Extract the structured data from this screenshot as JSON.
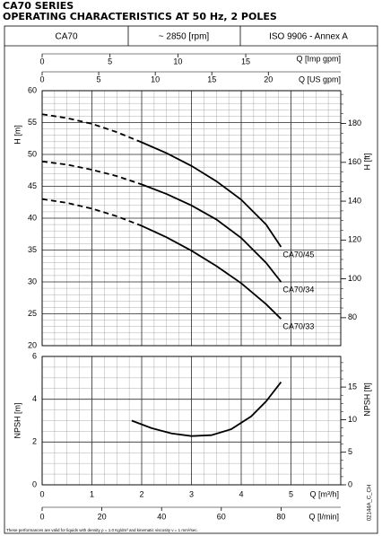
{
  "header": {
    "title": "CA70 SERIES",
    "subtitle": "OPERATING CHARACTERISTICS AT 50 Hz, 2 POLES",
    "cells": [
      "CA70",
      "~ 2850 [rpm]",
      "ISO 9906 - Annex A"
    ]
  },
  "chart_data": [
    {
      "type": "line",
      "ylabel": "H [m]",
      "ylim": [
        20,
        60
      ],
      "yticks": [
        20,
        25,
        30,
        35,
        40,
        45,
        50,
        55,
        60
      ],
      "y2label": "H [ft]",
      "y2lim": [
        65.6,
        196.9
      ],
      "y2ticks": [
        80,
        100,
        120,
        140,
        160,
        180
      ],
      "xlim": [
        0,
        6
      ],
      "grid": true,
      "top_axes": [
        {
          "label": "Q [Imp gpm]",
          "xlim": [
            0,
            22
          ],
          "xticks": [
            0,
            5,
            10,
            15
          ]
        },
        {
          "label": "Q [US gpm]",
          "xlim": [
            0,
            26.4
          ],
          "xticks": [
            0,
            5,
            10,
            15,
            20
          ]
        }
      ],
      "series": [
        {
          "style": "dashed",
          "color": "#000000",
          "x": [
            0,
            0.5,
            1,
            1.5,
            2
          ],
          "values": [
            56.3,
            55.7,
            54.8,
            53.5,
            51.9
          ]
        },
        {
          "name": "CA70/45",
          "style": "solid",
          "color": "#000000",
          "x": [
            2,
            2.5,
            3,
            3.5,
            4,
            4.5,
            4.8
          ],
          "values": [
            51.9,
            50.2,
            48.2,
            45.8,
            42.9,
            39.0,
            35.5
          ]
        },
        {
          "style": "dashed",
          "color": "#000000",
          "x": [
            0,
            0.5,
            1,
            1.5,
            2
          ],
          "values": [
            48.9,
            48.4,
            47.6,
            46.6,
            45.3
          ]
        },
        {
          "name": "CA70/34",
          "style": "solid",
          "color": "#000000",
          "x": [
            2,
            2.5,
            3,
            3.5,
            4,
            4.5,
            4.8
          ],
          "values": [
            45.3,
            43.8,
            42.0,
            39.8,
            36.9,
            33.0,
            30.0
          ]
        },
        {
          "style": "dashed",
          "color": "#000000",
          "x": [
            0,
            0.5,
            1,
            1.5,
            2
          ],
          "values": [
            43.0,
            42.4,
            41.5,
            40.3,
            38.8
          ]
        },
        {
          "name": "CA70/33",
          "style": "solid",
          "color": "#000000",
          "x": [
            2,
            2.5,
            3,
            3.5,
            4,
            4.5,
            4.8
          ],
          "values": [
            38.8,
            37.0,
            34.9,
            32.5,
            29.8,
            26.5,
            24.2
          ]
        }
      ]
    },
    {
      "type": "line",
      "ylabel": "NPSH [m]",
      "ylim": [
        0,
        6
      ],
      "yticks": [
        0,
        2,
        4,
        6
      ],
      "y2label": "NPSH [ft]",
      "y2lim": [
        0,
        19.7
      ],
      "y2ticks": [
        0,
        5,
        10,
        15
      ],
      "xlabel": "Q [m³/h]",
      "xlim": [
        0,
        6
      ],
      "xticks": [
        0,
        1,
        2,
        3,
        4,
        5
      ],
      "grid": true,
      "bottom_axis": {
        "label": "Q [l/min]",
        "xlim": [
          0,
          100
        ],
        "xticks": [
          0,
          20,
          40,
          60,
          80
        ]
      },
      "series": [
        {
          "style": "solid",
          "color": "#000000",
          "x": [
            1.8,
            2.2,
            2.6,
            3.0,
            3.4,
            3.8,
            4.2,
            4.5,
            4.8
          ],
          "values": [
            3.0,
            2.65,
            2.4,
            2.28,
            2.32,
            2.6,
            3.2,
            3.9,
            4.8
          ]
        }
      ]
    }
  ],
  "footnote": "These performances are valid for liquids with density ρ = 1.0 Kg/dm³ and kinematic viscosity ν = 1 mm²/sec.",
  "code": "02144A_C_CH"
}
